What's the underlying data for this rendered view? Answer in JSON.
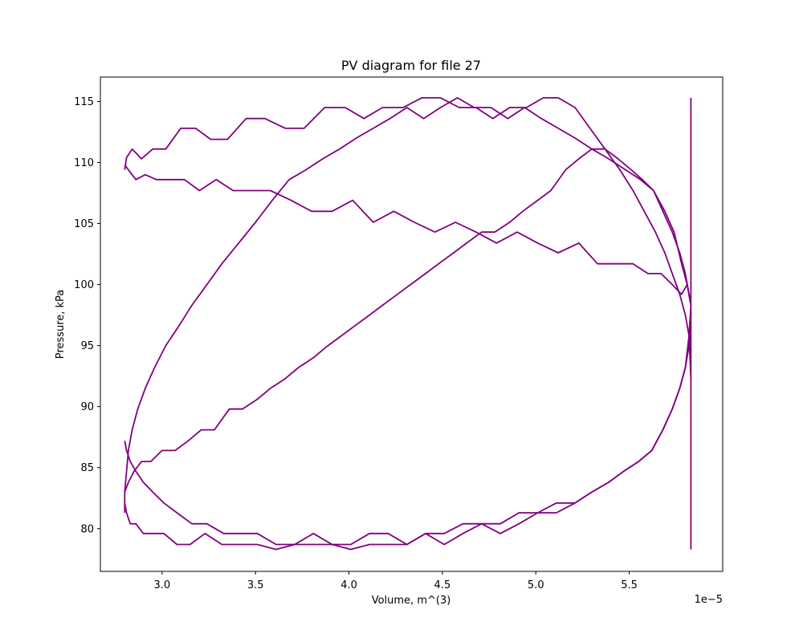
{
  "chart_data": {
    "type": "line",
    "title": "PV diagram for file 27",
    "xlabel": "Volume, m^(3)",
    "ylabel": "Pressure, kPa",
    "x_offset_label": "1e−5",
    "x_tick_labels": [
      "3.0",
      "3.5",
      "4.0",
      "4.5",
      "5.0",
      "5.5"
    ],
    "x_ticks": [
      3.0,
      3.5,
      4.0,
      4.5,
      5.0,
      5.5
    ],
    "y_tick_labels": [
      "80",
      "85",
      "90",
      "95",
      "100",
      "105",
      "110",
      "115"
    ],
    "y_ticks": [
      80,
      85,
      90,
      95,
      100,
      105,
      110,
      115
    ],
    "xlim": [
      2.67,
      6.0
    ],
    "ylim": [
      76.5,
      117
    ],
    "grid": false,
    "line_color": "#800080",
    "series": [
      {
        "x": [
          2.8,
          2.81,
          2.84,
          2.89,
          2.95,
          3.02,
          3.1,
          3.18,
          3.26,
          3.35,
          3.45,
          3.55,
          3.66,
          3.76,
          3.87,
          3.98,
          4.08,
          4.18,
          4.29,
          4.39,
          4.49,
          4.59,
          4.68,
          4.77,
          4.86,
          4.95,
          5.04,
          5.12,
          5.21,
          5.29,
          5.37,
          5.45,
          5.52,
          5.58,
          5.64,
          5.69,
          5.73,
          5.77,
          5.8,
          5.82,
          5.83
        ],
        "y": [
          109.4,
          110.4,
          111.1,
          110.3,
          111.1,
          111.1,
          112.8,
          112.8,
          111.9,
          111.9,
          113.6,
          113.6,
          112.8,
          112.8,
          114.5,
          114.5,
          113.6,
          114.5,
          114.5,
          115.3,
          115.3,
          114.5,
          114.5,
          113.6,
          114.5,
          114.5,
          115.3,
          115.3,
          114.5,
          112.8,
          111.1,
          109.4,
          107.7,
          106.0,
          104.3,
          102.6,
          100.9,
          99.2,
          97.5,
          95.8,
          92.3
        ]
      },
      {
        "x": [
          2.8,
          2.82,
          2.86,
          2.91,
          2.97,
          3.04,
          3.12,
          3.2,
          3.29,
          3.38,
          3.48,
          3.58,
          3.69,
          3.8,
          3.91,
          4.02,
          4.13,
          4.24,
          4.35,
          4.46,
          4.57,
          4.68,
          4.79,
          4.9,
          5.01,
          5.12,
          5.23,
          5.33,
          5.43,
          5.52,
          5.6,
          5.67,
          5.73,
          5.78,
          5.81,
          5.83
        ],
        "y": [
          109.8,
          109.4,
          108.6,
          109.0,
          108.6,
          108.6,
          108.6,
          107.7,
          108.6,
          107.7,
          107.7,
          107.7,
          106.9,
          106.0,
          106.0,
          106.9,
          105.1,
          106.0,
          105.1,
          104.3,
          105.1,
          104.3,
          103.4,
          104.3,
          103.4,
          102.6,
          103.4,
          101.7,
          101.7,
          101.7,
          100.9,
          100.9,
          100.0,
          99.2,
          100.0,
          98.3
        ]
      },
      {
        "x": [
          2.8,
          2.8,
          2.81,
          2.82,
          2.84,
          2.87,
          2.91,
          2.96,
          3.02,
          3.09,
          3.16,
          3.24,
          3.32,
          3.41,
          3.5,
          3.59,
          3.68,
          3.77,
          3.86,
          3.95,
          4.04,
          4.13,
          4.22,
          4.31,
          4.4,
          4.49,
          4.58,
          4.67,
          4.76,
          4.85,
          4.94,
          5.03,
          5.12,
          5.21,
          5.3,
          5.39,
          5.48,
          5.56,
          5.63,
          5.69,
          5.74,
          5.78,
          5.81,
          5.83
        ],
        "y": [
          81.3,
          83.0,
          84.7,
          86.4,
          88.1,
          89.8,
          91.5,
          93.2,
          95.0,
          96.6,
          98.3,
          100.0,
          101.7,
          103.4,
          105.1,
          106.9,
          108.6,
          109.4,
          110.3,
          111.1,
          112.0,
          112.8,
          113.6,
          114.5,
          113.6,
          114.5,
          115.3,
          114.5,
          114.5,
          113.6,
          114.5,
          113.6,
          112.8,
          112.0,
          111.1,
          110.3,
          109.4,
          108.6,
          107.7,
          106.0,
          104.3,
          101.7,
          100.0,
          98.3
        ]
      },
      {
        "x": [
          2.8,
          2.81,
          2.83,
          2.86,
          2.9,
          2.95,
          3.01,
          3.08,
          3.16,
          3.24,
          3.33,
          3.42,
          3.51,
          3.61,
          3.71,
          3.81,
          3.91,
          4.01,
          4.11,
          4.21,
          4.31,
          4.41,
          4.51,
          4.61,
          4.71,
          4.81,
          4.91,
          5.01,
          5.11,
          5.21,
          5.3,
          5.39,
          5.47,
          5.55,
          5.62,
          5.68,
          5.73,
          5.77,
          5.8,
          5.82,
          5.83
        ],
        "y": [
          87.2,
          86.4,
          85.5,
          84.7,
          83.8,
          83.0,
          82.1,
          81.3,
          80.4,
          80.4,
          79.6,
          79.6,
          79.6,
          78.7,
          78.7,
          79.6,
          78.7,
          78.7,
          79.6,
          79.6,
          78.7,
          79.6,
          79.6,
          80.4,
          80.4,
          79.6,
          80.4,
          81.3,
          81.3,
          82.1,
          83.0,
          83.8,
          84.7,
          85.5,
          86.4,
          88.1,
          89.8,
          91.5,
          93.2,
          95.8,
          98.3
        ]
      },
      {
        "x": [
          2.8,
          2.81,
          2.83,
          2.86,
          2.9,
          2.95,
          3.01,
          3.08,
          3.15,
          3.23,
          3.32,
          3.41,
          3.51,
          3.61,
          3.71,
          3.81,
          3.91,
          4.01,
          4.11,
          4.21,
          4.31,
          4.41,
          4.51,
          4.61,
          4.71,
          4.81,
          4.91,
          5.01,
          5.11,
          5.21,
          5.3,
          5.39,
          5.47,
          5.55,
          5.62,
          5.68,
          5.73,
          5.77,
          5.8,
          5.82,
          5.83
        ],
        "y": [
          82.1,
          81.3,
          80.4,
          80.4,
          79.6,
          79.6,
          79.6,
          78.7,
          78.7,
          79.6,
          78.7,
          78.7,
          78.7,
          78.3,
          78.7,
          78.7,
          78.7,
          78.3,
          78.7,
          78.7,
          78.7,
          79.6,
          78.7,
          79.6,
          80.4,
          80.4,
          81.3,
          81.3,
          82.1,
          82.1,
          83.0,
          83.8,
          84.7,
          85.5,
          86.4,
          88.1,
          89.8,
          91.5,
          93.2,
          95.0,
          96.6
        ]
      },
      {
        "x": [
          2.8,
          2.82,
          2.85,
          2.89,
          2.94,
          3.0,
          3.07,
          3.14,
          3.21,
          3.28,
          3.36,
          3.43,
          3.51,
          3.58,
          3.66,
          3.73,
          3.81,
          3.88,
          3.96,
          4.03,
          4.11,
          4.18,
          4.26,
          4.33,
          4.41,
          4.48,
          4.56,
          4.63,
          4.71,
          4.78,
          4.86,
          4.93,
          5.01,
          5.08,
          5.16,
          5.23,
          5.3,
          5.37,
          5.44,
          5.51,
          5.57,
          5.63,
          5.68,
          5.73,
          5.77,
          5.8,
          5.82,
          5.83
        ],
        "y": [
          83.0,
          83.8,
          84.7,
          85.5,
          85.5,
          86.4,
          86.4,
          87.2,
          88.1,
          88.1,
          89.8,
          89.8,
          90.6,
          91.5,
          92.3,
          93.2,
          94.0,
          94.9,
          95.8,
          96.6,
          97.5,
          98.3,
          99.2,
          100.0,
          100.9,
          101.7,
          102.6,
          103.4,
          104.3,
          104.3,
          105.1,
          106.0,
          106.9,
          107.7,
          109.4,
          110.3,
          111.1,
          111.1,
          110.3,
          109.4,
          108.6,
          107.7,
          106.0,
          104.3,
          102.6,
          100.9,
          99.2,
          98.3
        ]
      },
      {
        "x": [
          5.83,
          5.83,
          5.83,
          5.83
        ],
        "y": [
          115.3,
          97.5,
          85.5,
          78.3
        ]
      }
    ]
  }
}
